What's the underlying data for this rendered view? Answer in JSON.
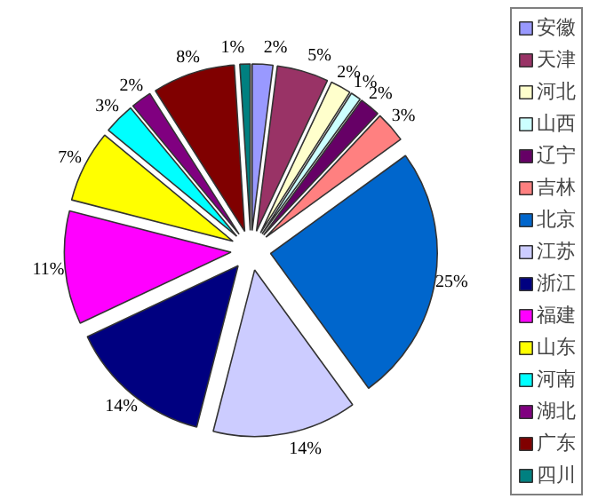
{
  "chart_data": {
    "type": "pie",
    "categories": [
      "安徽",
      "天津",
      "河北",
      "山西",
      "辽宁",
      "吉林",
      "北京",
      "江苏",
      "浙江",
      "福建",
      "山东",
      "河南",
      "湖北",
      "广东",
      "四川"
    ],
    "values": [
      2,
      5,
      2,
      1,
      2,
      3,
      25,
      14,
      14,
      11,
      7,
      3,
      2,
      8,
      1
    ],
    "value_labels": [
      "2%",
      "5%",
      "2%",
      "1%",
      "2%",
      "3%",
      "25%",
      "14%",
      "14%",
      "11%",
      "7%",
      "3%",
      "2%",
      "8%",
      "1%"
    ],
    "colors": [
      "#9999ff",
      "#993366",
      "#ffffcc",
      "#ccffff",
      "#660066",
      "#ff8080",
      "#0066cc",
      "#ccccff",
      "#000080",
      "#ff00ff",
      "#ffff00",
      "#00ffff",
      "#800080",
      "#800000",
      "#008080"
    ],
    "legend": "right"
  }
}
